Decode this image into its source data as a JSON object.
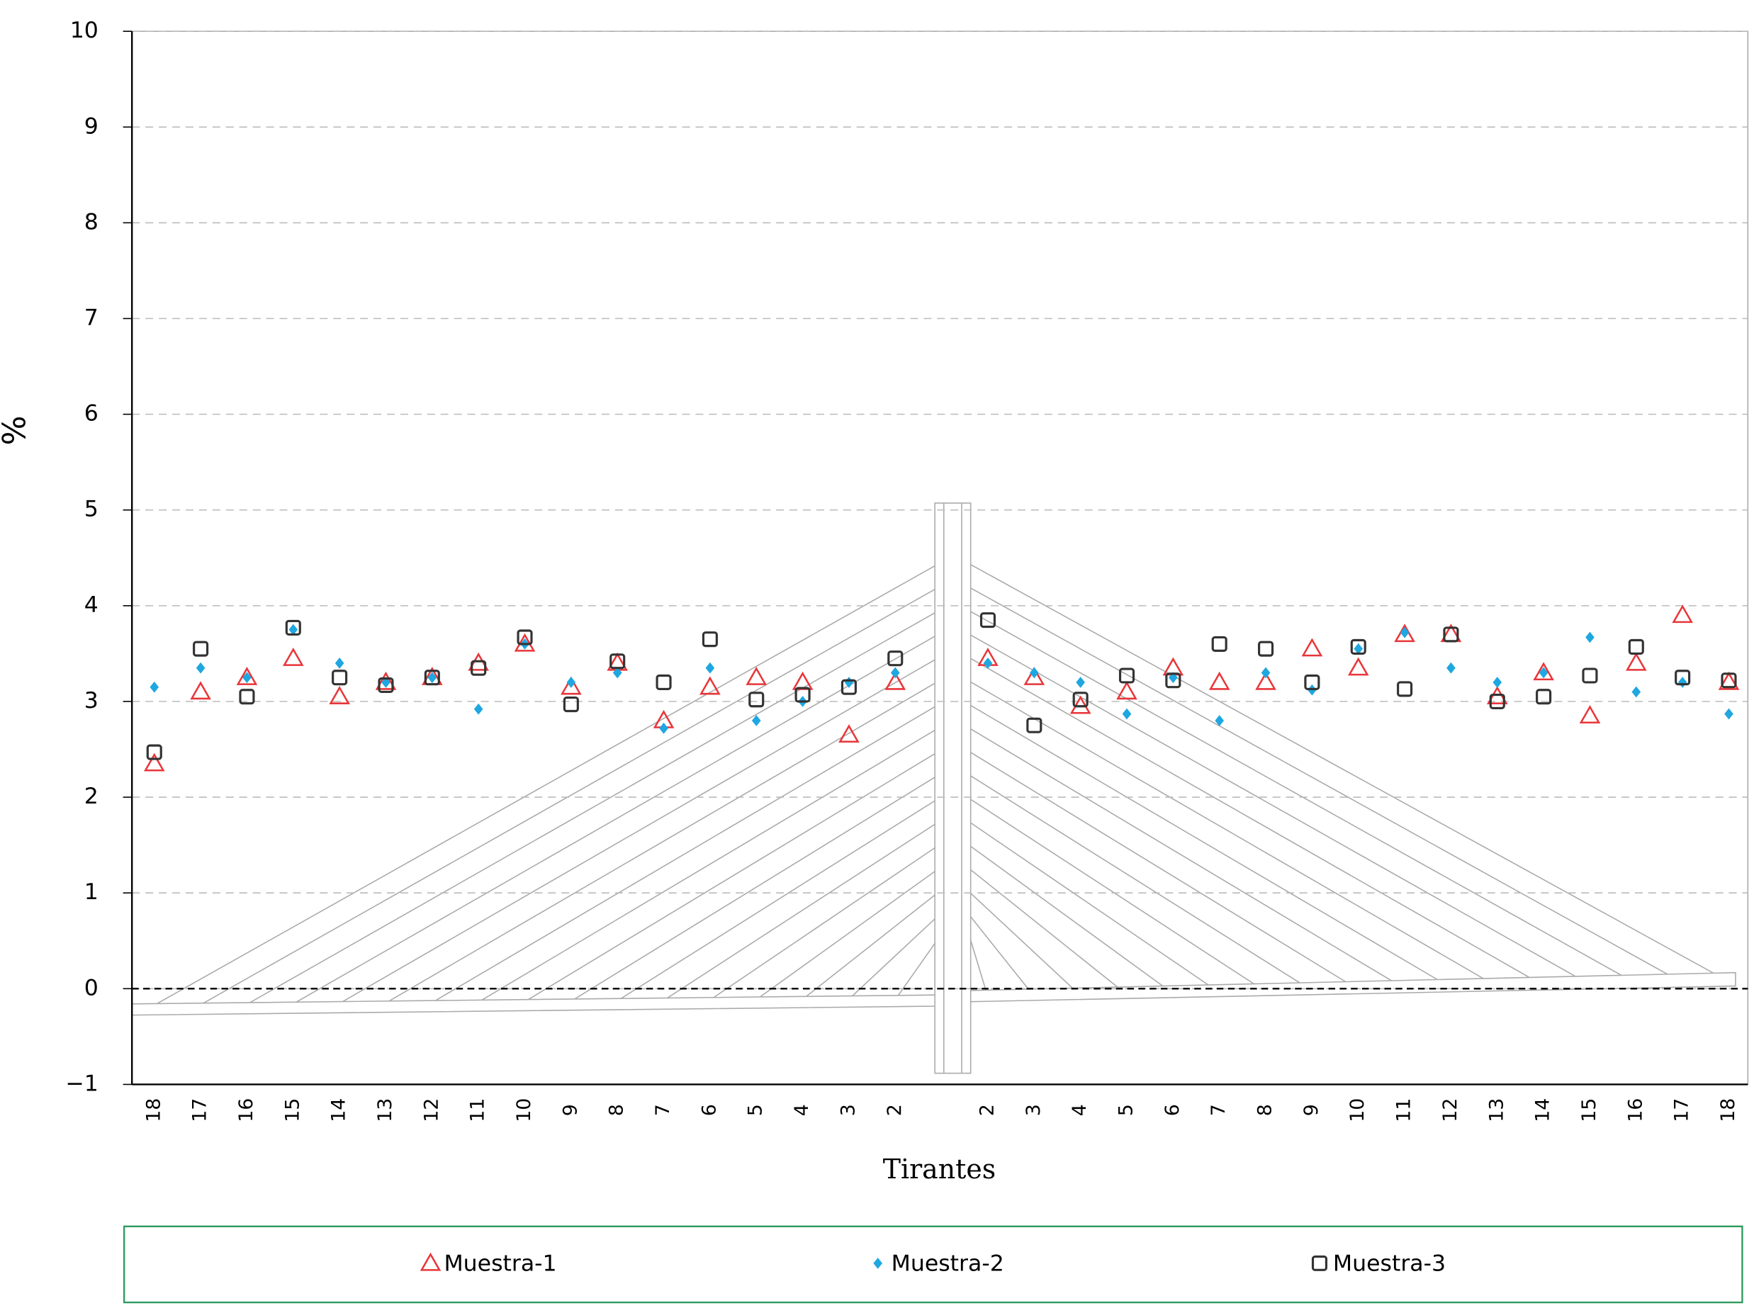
{
  "chart_data": {
    "type": "scatter",
    "xlabel": "Tirantes",
    "ylabel": "%",
    "categories": [
      "18",
      "17",
      "16",
      "15",
      "14",
      "13",
      "12",
      "11",
      "10",
      "9",
      "8",
      "7",
      "6",
      "5",
      "4",
      "3",
      "2",
      null,
      "2",
      "3",
      "4",
      "5",
      "6",
      "7",
      "8",
      "9",
      "10",
      "11",
      "12",
      "13",
      "14",
      "15",
      "16",
      "17",
      "18"
    ],
    "series": [
      {
        "name": "Muestra-1",
        "color": "#e8363a",
        "marker": "triangle",
        "values": [
          2.35,
          3.1,
          3.25,
          3.45,
          3.05,
          3.2,
          3.25,
          3.4,
          3.6,
          3.15,
          3.4,
          2.8,
          3.15,
          3.25,
          3.2,
          2.65,
          3.2,
          null,
          3.45,
          3.25,
          2.95,
          3.1,
          3.35,
          3.2,
          3.2,
          3.55,
          3.35,
          3.7,
          3.7,
          3.05,
          3.3,
          2.85,
          3.4,
          3.9,
          3.2
        ]
      },
      {
        "name": "Muestra-2",
        "color": "#1ea7e0",
        "marker": "diamond",
        "values": [
          3.15,
          3.35,
          3.25,
          3.75,
          3.4,
          3.2,
          3.25,
          2.92,
          3.6,
          3.2,
          3.3,
          2.72,
          3.35,
          2.8,
          3.0,
          3.2,
          3.3,
          null,
          3.4,
          3.3,
          3.2,
          2.87,
          3.25,
          2.8,
          3.3,
          3.12,
          3.55,
          3.72,
          3.35,
          3.2,
          3.3,
          3.67,
          3.1,
          3.2,
          2.87
        ]
      },
      {
        "name": "Muestra-3",
        "color": "#333333",
        "marker": "square",
        "values": [
          2.47,
          3.55,
          3.05,
          3.77,
          3.25,
          3.17,
          3.25,
          3.35,
          3.67,
          2.97,
          3.42,
          3.2,
          3.65,
          3.02,
          3.07,
          3.15,
          3.45,
          null,
          3.85,
          2.75,
          3.02,
          3.27,
          3.22,
          3.6,
          3.55,
          3.2,
          3.57,
          3.13,
          3.7,
          3.0,
          3.05,
          3.27,
          3.57,
          3.25,
          3.22
        ]
      }
    ],
    "ylim": [
      -1,
      10
    ],
    "yticks": [
      {
        "value": -1,
        "label": "−1"
      },
      0,
      1,
      2,
      3,
      4,
      5,
      6,
      7,
      8,
      9,
      10
    ],
    "grid": true,
    "legend": "bottom"
  }
}
